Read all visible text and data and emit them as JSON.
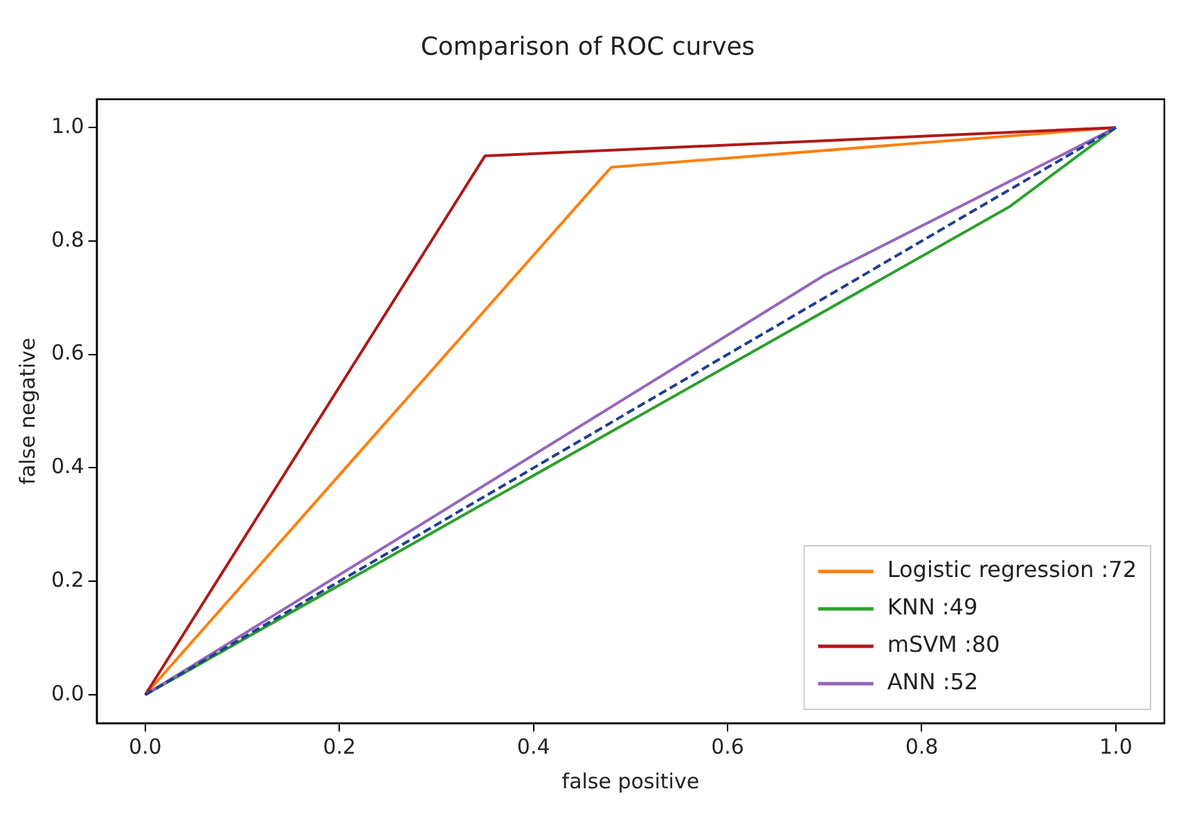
{
  "chart_data": {
    "type": "line",
    "title": "Comparison of ROC curves",
    "xlabel": "false positive",
    "ylabel": "false negative",
    "xlim": [
      -0.05,
      1.05
    ],
    "ylim": [
      -0.05,
      1.05
    ],
    "xticks": [
      {
        "value": 0,
        "label": "0.0"
      },
      {
        "value": 0.2,
        "label": "0.2"
      },
      {
        "value": 0.4,
        "label": "0.4"
      },
      {
        "value": 0.6,
        "label": "0.6"
      },
      {
        "value": 0.8,
        "label": "0.8"
      },
      {
        "value": 1,
        "label": "1.0"
      }
    ],
    "yticks": [
      {
        "value": 0,
        "label": "0.0"
      },
      {
        "value": 0.2,
        "label": "0.2"
      },
      {
        "value": 0.4,
        "label": "0.4"
      },
      {
        "value": 0.6,
        "label": "0.6"
      },
      {
        "value": 0.8,
        "label": "0.8"
      },
      {
        "value": 1,
        "label": "1.0"
      }
    ],
    "grid": false,
    "legend": "bottom right",
    "marker": "none",
    "line_style": "solid",
    "series": [
      {
        "name": "Logistic regression :72",
        "color": "#ff7f0e",
        "x": [
          0,
          0.48,
          1
        ],
        "values": [
          0,
          0.93,
          1
        ]
      },
      {
        "name": "KNN :49",
        "color": "#2ca02c",
        "x": [
          0,
          0.89,
          1
        ],
        "values": [
          0,
          0.86,
          1
        ]
      },
      {
        "name": "mSVM :80",
        "color": "#b01818",
        "x": [
          0,
          0.35,
          1
        ],
        "values": [
          0,
          0.95,
          1
        ]
      },
      {
        "name": "ANN :52",
        "color": "#9467bd",
        "x": [
          0,
          0.7,
          1
        ],
        "values": [
          0,
          0.74,
          1
        ]
      },
      {
        "color": "#1f3f8f",
        "line_style": "dashed",
        "x": [
          0,
          1
        ],
        "values": [
          0,
          1
        ]
      }
    ]
  }
}
